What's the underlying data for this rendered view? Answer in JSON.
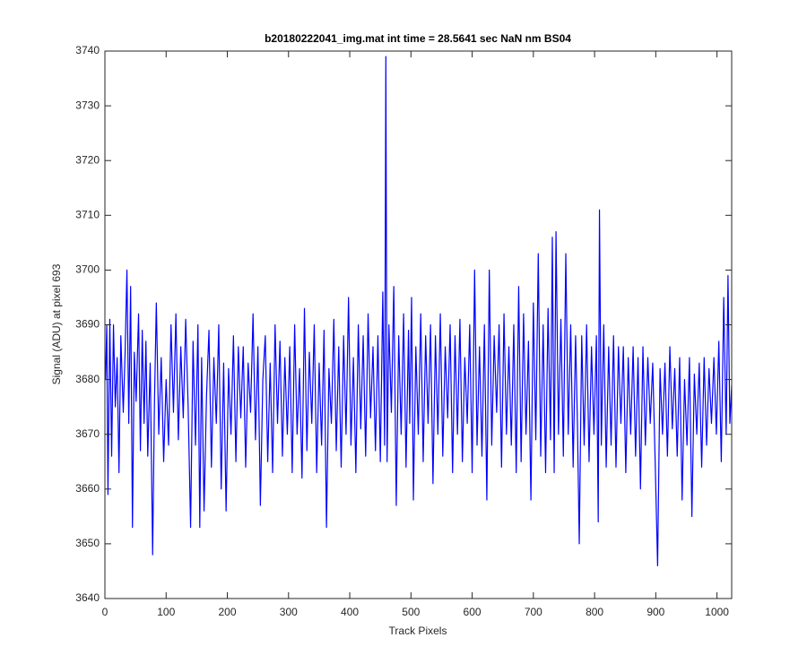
{
  "chart_data": {
    "type": "line",
    "title": "b20180222041_img.mat int time = 28.5641 sec  NaN nm BS04",
    "xlabel": "Track Pixels",
    "ylabel": "Signal (ADU) at pixel 693",
    "color": "#0000ff",
    "xlim": [
      0,
      1024
    ],
    "ylim": [
      3640,
      3740
    ],
    "xticks": [
      0,
      100,
      200,
      300,
      400,
      500,
      600,
      700,
      800,
      900,
      1000
    ],
    "yticks": [
      3640,
      3650,
      3660,
      3670,
      3680,
      3690,
      3700,
      3710,
      3720,
      3730,
      3740
    ],
    "x": [
      1,
      3,
      5,
      8,
      11,
      14,
      17,
      20,
      23,
      26,
      30,
      33,
      36,
      39,
      42,
      45,
      48,
      51,
      55,
      58,
      61,
      64,
      67,
      70,
      74,
      78,
      81,
      84,
      88,
      92,
      96,
      100,
      104,
      108,
      112,
      116,
      120,
      124,
      128,
      132,
      136,
      140,
      144,
      148,
      152,
      155,
      158,
      162,
      166,
      170,
      174,
      178,
      182,
      186,
      190,
      194,
      198,
      202,
      206,
      210,
      214,
      218,
      222,
      226,
      230,
      234,
      238,
      242,
      246,
      250,
      254,
      258,
      262,
      266,
      270,
      274,
      278,
      282,
      286,
      290,
      294,
      298,
      302,
      306,
      310,
      314,
      318,
      322,
      326,
      330,
      334,
      338,
      342,
      346,
      350,
      354,
      358,
      362,
      366,
      370,
      374,
      378,
      382,
      386,
      390,
      394,
      398,
      402,
      406,
      410,
      414,
      418,
      422,
      426,
      430,
      434,
      438,
      442,
      446,
      450,
      454,
      457,
      459,
      461,
      464,
      468,
      472,
      476,
      480,
      484,
      488,
      492,
      496,
      498,
      501,
      504,
      508,
      512,
      516,
      520,
      524,
      528,
      532,
      536,
      540,
      544,
      548,
      552,
      556,
      560,
      564,
      568,
      572,
      576,
      580,
      584,
      588,
      592,
      596,
      600,
      604,
      608,
      612,
      616,
      620,
      624,
      628,
      632,
      636,
      640,
      644,
      648,
      652,
      656,
      660,
      664,
      668,
      672,
      676,
      680,
      684,
      688,
      692,
      696,
      700,
      704,
      708,
      712,
      716,
      720,
      724,
      728,
      731,
      734,
      737,
      741,
      745,
      749,
      753,
      757,
      761,
      765,
      769,
      772,
      775,
      779,
      783,
      787,
      791,
      795,
      799,
      803,
      806,
      808,
      811,
      815,
      819,
      823,
      827,
      831,
      835,
      839,
      843,
      847,
      851,
      855,
      859,
      863,
      867,
      871,
      875,
      879,
      883,
      887,
      891,
      895,
      899,
      903,
      907,
      911,
      915,
      919,
      923,
      927,
      931,
      935,
      939,
      943,
      947,
      951,
      955,
      959,
      963,
      967,
      971,
      975,
      979,
      983,
      987,
      991,
      995,
      999,
      1003,
      1007,
      1011,
      1015,
      1018,
      1021,
      1024
    ],
    "values": [
      3680,
      3690,
      3659,
      3691,
      3666,
      3690,
      3675,
      3684,
      3663,
      3688,
      3674,
      3685,
      3700,
      3672,
      3697,
      3653,
      3685,
      3676,
      3692,
      3667,
      3689,
      3672,
      3687,
      3666,
      3683,
      3648,
      3676,
      3694,
      3670,
      3684,
      3665,
      3680,
      3668,
      3690,
      3674,
      3692,
      3669,
      3686,
      3673,
      3691,
      3675,
      3653,
      3687,
      3668,
      3690,
      3653,
      3684,
      3656,
      3677,
      3689,
      3664,
      3684,
      3672,
      3690,
      3660,
      3683,
      3656,
      3682,
      3670,
      3688,
      3665,
      3686,
      3673,
      3686,
      3664,
      3683,
      3674,
      3692,
      3669,
      3686,
      3657,
      3680,
      3688,
      3665,
      3683,
      3663,
      3690,
      3672,
      3687,
      3666,
      3684,
      3670,
      3686,
      3663,
      3690,
      3670,
      3682,
      3662,
      3693,
      3667,
      3685,
      3672,
      3690,
      3663,
      3683,
      3668,
      3689,
      3653,
      3682,
      3672,
      3691,
      3667,
      3686,
      3664,
      3688,
      3670,
      3695,
      3668,
      3684,
      3663,
      3690,
      3671,
      3688,
      3666,
      3692,
      3673,
      3686,
      3667,
      3688,
      3665,
      3696,
      3668,
      3739,
      3665,
      3690,
      3674,
      3697,
      3657,
      3688,
      3670,
      3692,
      3664,
      3689,
      3672,
      3695,
      3658,
      3686,
      3670,
      3692,
      3665,
      3688,
      3672,
      3690,
      3661,
      3688,
      3670,
      3692,
      3666,
      3686,
      3673,
      3690,
      3663,
      3688,
      3670,
      3691,
      3665,
      3684,
      3672,
      3690,
      3663,
      3700,
      3668,
      3686,
      3666,
      3690,
      3658,
      3700,
      3668,
      3688,
      3674,
      3690,
      3664,
      3692,
      3670,
      3686,
      3668,
      3690,
      3663,
      3697,
      3665,
      3692,
      3670,
      3687,
      3658,
      3694,
      3669,
      3703,
      3666,
      3690,
      3663,
      3693,
      3669,
      3706,
      3663,
      3707,
      3670,
      3691,
      3666,
      3703,
      3670,
      3690,
      3664,
      3688,
      3672,
      3650,
      3688,
      3668,
      3690,
      3665,
      3686,
      3670,
      3688,
      3654,
      3711,
      3668,
      3690,
      3664,
      3686,
      3668,
      3688,
      3664,
      3686,
      3672,
      3686,
      3663,
      3684,
      3670,
      3686,
      3666,
      3684,
      3660,
      3686,
      3668,
      3684,
      3672,
      3683,
      3665,
      3646,
      3682,
      3670,
      3683,
      3666,
      3686,
      3671,
      3682,
      3666,
      3684,
      3658,
      3680,
      3668,
      3684,
      3655,
      3681,
      3670,
      3683,
      3664,
      3684,
      3668,
      3682,
      3672,
      3684,
      3670,
      3687,
      3665,
      3695,
      3670,
      3699,
      3672,
      3679
    ]
  }
}
